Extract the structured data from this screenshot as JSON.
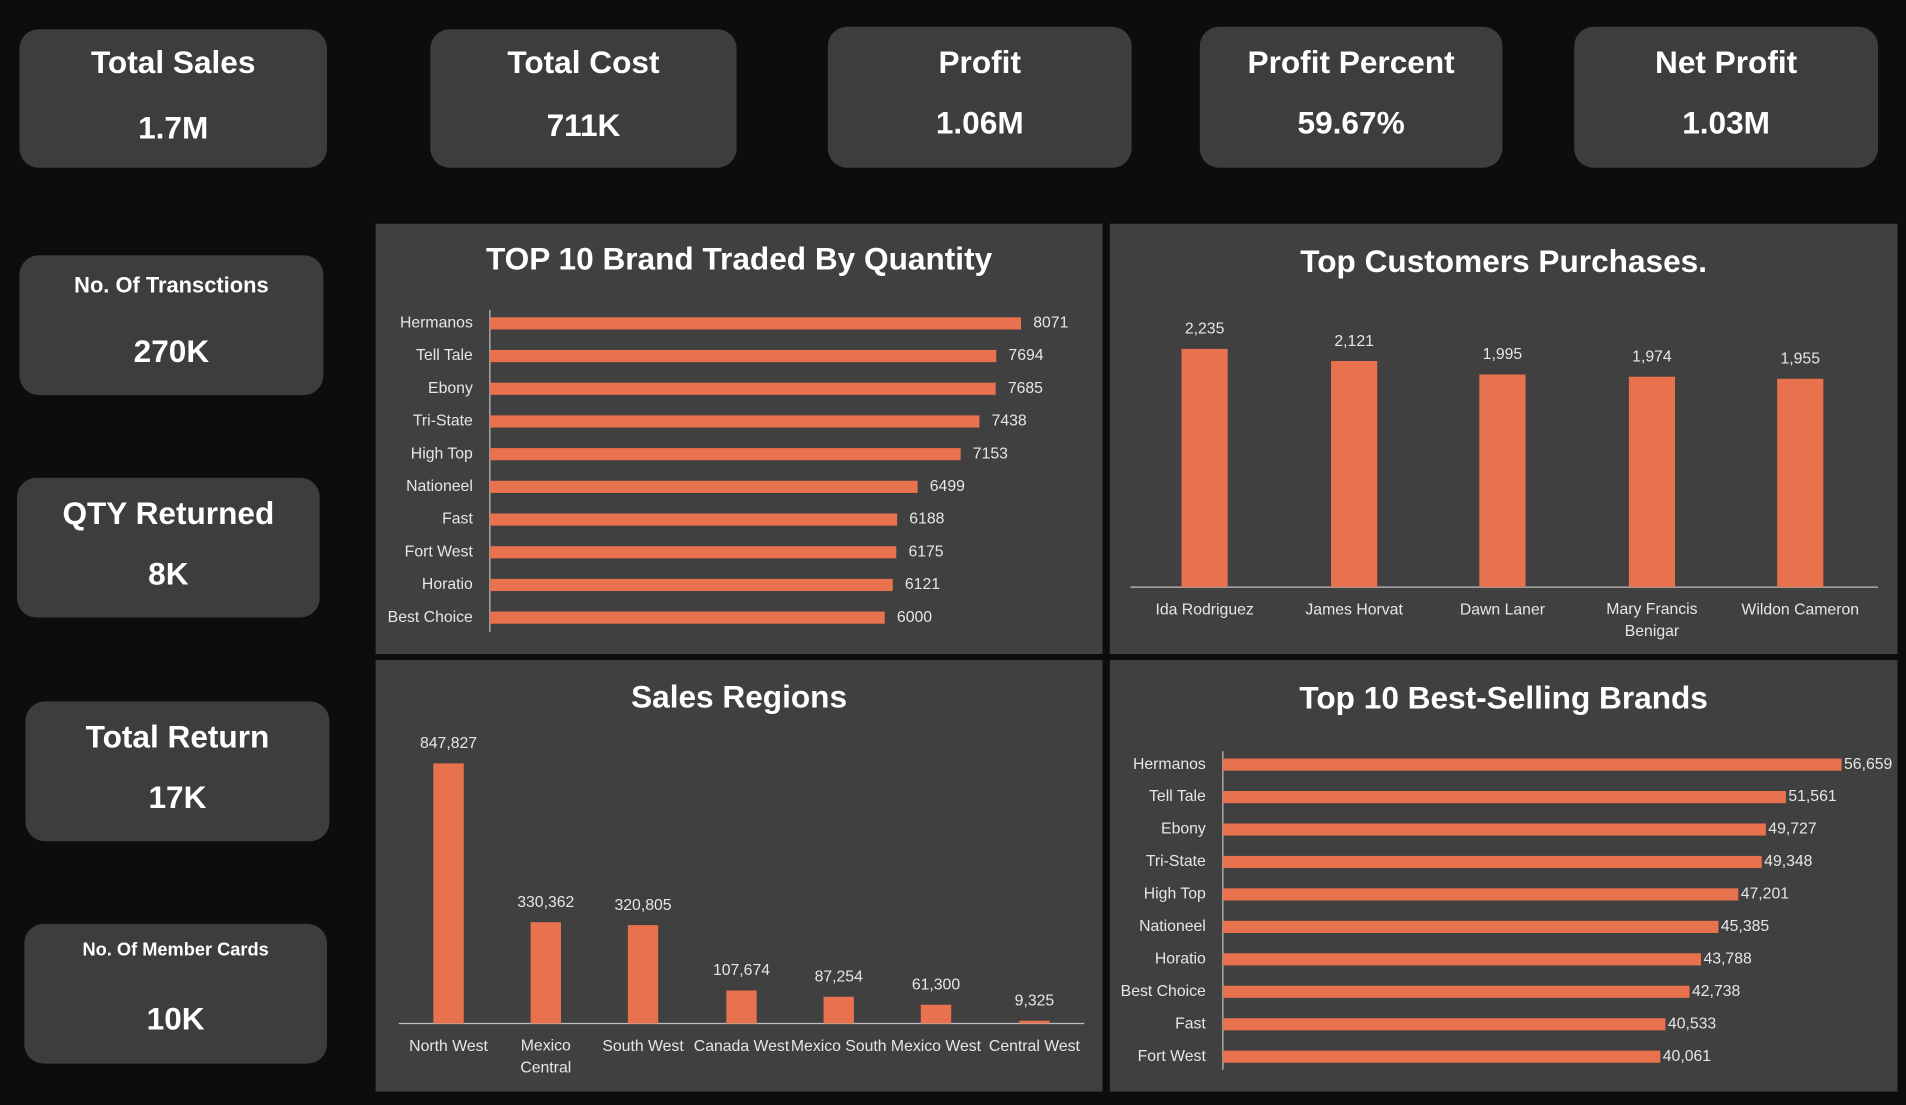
{
  "kpis": [
    {
      "title": "Total Sales",
      "value": "1.7M"
    },
    {
      "title": "Total Cost",
      "value": "711K"
    },
    {
      "title": "Profit",
      "value": "1.06M"
    },
    {
      "title": "Profit Percent",
      "value": "59.67%"
    },
    {
      "title": "Net Profit",
      "value": "1.03M"
    },
    {
      "title": "No. Of Transctions",
      "value": "270K"
    },
    {
      "title": "QTY Returned",
      "value": "8K"
    },
    {
      "title": "Total Return",
      "value": "17K"
    },
    {
      "title": "No. Of Member Cards",
      "value": "10K"
    }
  ],
  "chart_data": [
    {
      "type": "bar",
      "orientation": "horizontal",
      "title": "TOP 10 Brand Traded By Quantity",
      "categories": [
        "Hermanos",
        "Tell Tale",
        "Ebony",
        "Tri-State",
        "High Top",
        "Nationeel",
        "Fast",
        "Fort West",
        "Horatio",
        "Best Choice"
      ],
      "values": [
        8071,
        7694,
        7685,
        7438,
        7153,
        6499,
        6188,
        6175,
        6121,
        6000
      ],
      "color": "#e8714e"
    },
    {
      "type": "bar",
      "orientation": "vertical",
      "title": "Top Customers Purchases.",
      "categories": [
        "Ida Rodriguez",
        "James Horvat",
        "Dawn Laner",
        "Mary Francis Benigar",
        "Wildon Cameron"
      ],
      "values": [
        2235,
        2121,
        1995,
        1974,
        1955
      ],
      "value_labels": [
        "2,235",
        "2,121",
        "1,995",
        "1,974",
        "1,955"
      ],
      "color": "#e8714e"
    },
    {
      "type": "bar",
      "orientation": "vertical",
      "title": "Sales Regions",
      "categories": [
        "North West",
        "Mexico Central",
        "South West",
        "Canada West",
        "Mexico South",
        "Mexico West",
        "Central West"
      ],
      "values": [
        847827,
        330362,
        320805,
        107674,
        87254,
        61300,
        9325
      ],
      "value_labels": [
        "847,827",
        "330,362",
        "320,805",
        "107,674",
        "87,254",
        "61,300",
        "9,325"
      ],
      "color": "#e8714e"
    },
    {
      "type": "bar",
      "orientation": "horizontal",
      "title": "Top 10 Best-Selling Brands",
      "categories": [
        "Hermanos",
        "Tell Tale",
        "Ebony",
        "Tri-State",
        "High Top",
        "Nationeel",
        "Horatio",
        "Best Choice",
        "Fast",
        "Fort West"
      ],
      "values": [
        56659,
        51561,
        49727,
        49348,
        47201,
        45385,
        43788,
        42738,
        40533,
        40061
      ],
      "value_labels": [
        "56,659",
        "51,561",
        "49,727",
        "49,348",
        "47,201",
        "45,385",
        "43,788",
        "42,738",
        "40,533",
        "40,061"
      ],
      "color": "#e8714e"
    }
  ]
}
